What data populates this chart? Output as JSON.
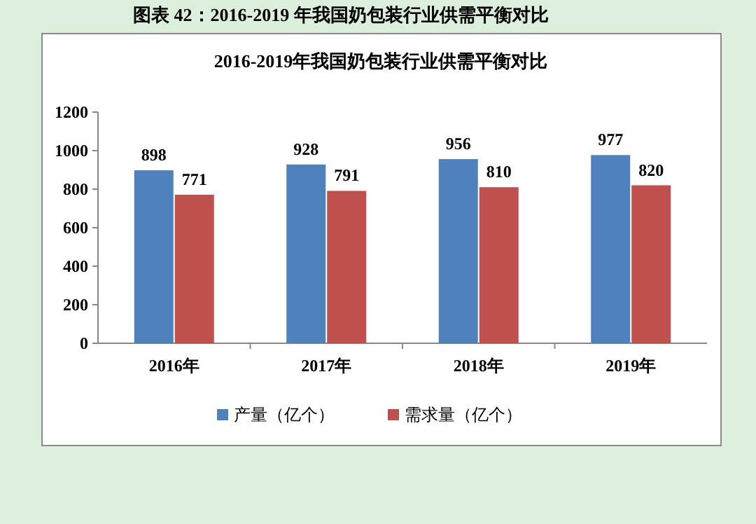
{
  "chart_data": {
    "type": "bar",
    "title": "2016-2019年我国奶包装行业供需平衡对比",
    "annotations": [
      "图表  42：2016-2019 年我国奶包装行业供需平衡对比"
    ],
    "categories": [
      "2016年",
      "2017年",
      "2018年",
      "2019年"
    ],
    "series": [
      {
        "name": "产量（亿个）",
        "color": "#4f81bd",
        "values": [
          898,
          928,
          956,
          977
        ]
      },
      {
        "name": "需求量（亿个）",
        "color": "#c0504d",
        "values": [
          771,
          791,
          810,
          820
        ]
      }
    ],
    "ylim": [
      0,
      1200
    ],
    "yticks": [
      0,
      200,
      400,
      600,
      800,
      1000,
      1200
    ],
    "data_labels": true,
    "legend": "bottom",
    "grid": false
  }
}
